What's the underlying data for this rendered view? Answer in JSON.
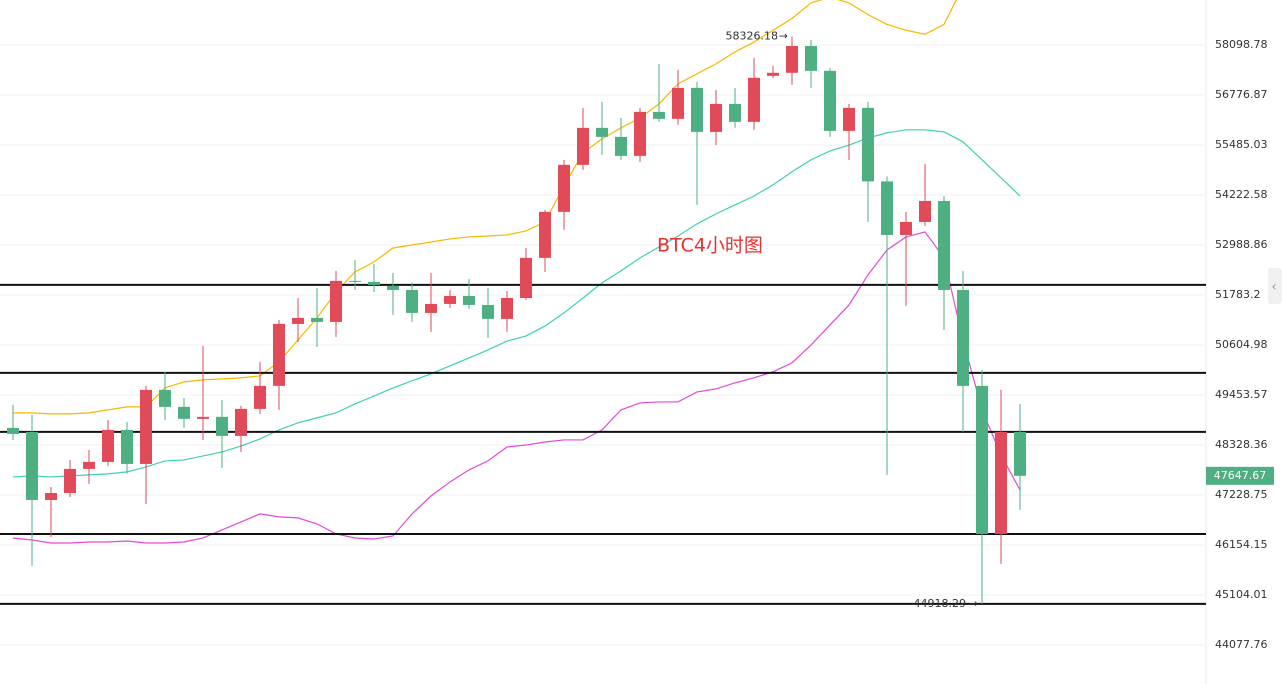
{
  "chart_data": {
    "type": "candlestick",
    "title": "BTC4小时图",
    "log_scale": true,
    "grid": true,
    "ylim": [
      43294,
      59315
    ],
    "yticks": [
      58098.78,
      56776.87,
      55485.03,
      54222.58,
      52988.86,
      51783.2,
      50604.98,
      49453.57,
      48328.36,
      47228.75,
      46154.15,
      45104.01,
      44077.76
    ],
    "up_color": "#e04a59",
    "down_color": "#4eb082",
    "open": [
      48711,
      48621,
      47121,
      47272,
      47800,
      47954,
      48666,
      47910,
      49570,
      49184,
      48914,
      48959,
      48531,
      49139,
      49662,
      51099,
      51240,
      51146,
      52121,
      52097,
      52001,
      51904,
      51358,
      51571,
      51760,
      51547,
      51217,
      51712,
      52676,
      53803,
      54981,
      55925,
      55693,
      55208,
      56338,
      56158,
      56964,
      55821,
      56545,
      56080,
      57280,
      57360,
      58072,
      57412,
      55847,
      56442,
      54563,
      53235,
      53554,
      54074,
      51904,
      49662,
      46390,
      48621
    ],
    "high": [
      49229,
      49004,
      47404,
      47998,
      48218,
      48891,
      48846,
      49662,
      49984,
      49386,
      50582,
      49341,
      49206,
      50214,
      51193,
      51712,
      51952,
      52362,
      52627,
      52531,
      52314,
      52073,
      52314,
      51904,
      52170,
      51952,
      51880,
      52916,
      53852,
      55107,
      56442,
      56596,
      56183,
      56442,
      57597,
      57439,
      57122,
      56911,
      56964,
      57756,
      57544,
      58326.18,
      58231,
      57492,
      56545,
      56596,
      54689,
      53803,
      55006,
      54198,
      52362,
      50030,
      49570,
      49251
    ],
    "low": [
      48441,
      45713,
      46326,
      47186,
      47470,
      47866,
      47690,
      47035,
      48891,
      48711,
      48441,
      47822,
      48174,
      49026,
      49116,
      50674,
      50559,
      50792,
      51904,
      51856,
      51311,
      51146,
      50910,
      51476,
      51453,
      50768,
      50910,
      51665,
      52338,
      53358,
      54855,
      55233,
      55107,
      55057,
      56080,
      56003,
      53976,
      55485,
      55925,
      55873,
      57228,
      57043,
      56964,
      55693,
      55107,
      53556,
      47668,
      51524,
      53457,
      50957,
      48621,
      44918.29,
      45755,
      46906
    ],
    "close": [
      48576,
      47121,
      47272,
      47800,
      47954,
      48666,
      47910,
      49570,
      49184,
      48914,
      48959,
      48531,
      49139,
      49662,
      51099,
      51240,
      51146,
      52121,
      52097,
      52025,
      51904,
      51358,
      51571,
      51760,
      51547,
      51217,
      51712,
      52676,
      53803,
      54981,
      55925,
      55693,
      55208,
      56338,
      56158,
      56964,
      55821,
      56545,
      56080,
      57228,
      57360,
      58072,
      57412,
      55847,
      56442,
      54563,
      53235,
      53554,
      54074,
      51904,
      49662,
      46390,
      48621,
      47647.67
    ],
    "series": [
      {
        "name": "upper",
        "color": "#f5b800",
        "values": [
          49049,
          49049,
          49026,
          49026,
          49049,
          49116,
          49184,
          49184,
          49616,
          49754,
          49800,
          49823,
          49846,
          49892,
          50214,
          50721,
          51240,
          51855,
          52338,
          52579,
          52916,
          52989,
          53063,
          53137,
          53186,
          53210,
          53235,
          53334,
          53556,
          54452,
          55283,
          55642,
          55925,
          56183,
          56545,
          57069,
          57333,
          57597,
          57914,
          58178,
          58495,
          58812,
          59234,
          59392,
          59234,
          58917,
          58653,
          58495,
          58389,
          58653,
          59683,
          null,
          null,
          null
        ]
      },
      {
        "name": "middle",
        "color": "#3ecfb8",
        "values": [
          47624,
          47646,
          47624,
          47646,
          47668,
          47690,
          47734,
          47844,
          47976,
          47998,
          48086,
          48174,
          48306,
          48463,
          48666,
          48824,
          48936,
          49049,
          49251,
          49431,
          49616,
          49777,
          49938,
          50122,
          50306,
          50490,
          50698,
          50815,
          51051,
          51358,
          51712,
          52073,
          52362,
          52676,
          52940,
          53210,
          53506,
          53754,
          53976,
          54198,
          54477,
          54805,
          55107,
          55334,
          55485,
          55667,
          55796,
          55874,
          55874,
          55821,
          55564,
          55107,
          54653,
          54198
        ]
      },
      {
        "name": "lower",
        "color": "#e04ad8",
        "values": [
          46304,
          46261,
          46197,
          46197,
          46218,
          46218,
          46240,
          46197,
          46197,
          46218,
          46304,
          46476,
          46648,
          46820,
          46756,
          46734,
          46605,
          46390,
          46304,
          46283,
          46347,
          46820,
          47207,
          47514,
          47778,
          47976,
          48284,
          48328,
          48396,
          48441,
          48441,
          48666,
          49116,
          49274,
          49296,
          49296,
          49524,
          49593,
          49731,
          49846,
          49984,
          50191,
          50605,
          51075,
          51547,
          52266,
          52868,
          53186,
          53309,
          52676,
          50721,
          49116,
          48108,
          47338
        ]
      }
    ],
    "levels": [
      52025,
      49961,
      48621,
      46390,
      44920
    ],
    "high_label": "58326.18",
    "low_label": "44918.29",
    "current_price_label": "47647.67",
    "current_price_color": "#4eb082"
  }
}
